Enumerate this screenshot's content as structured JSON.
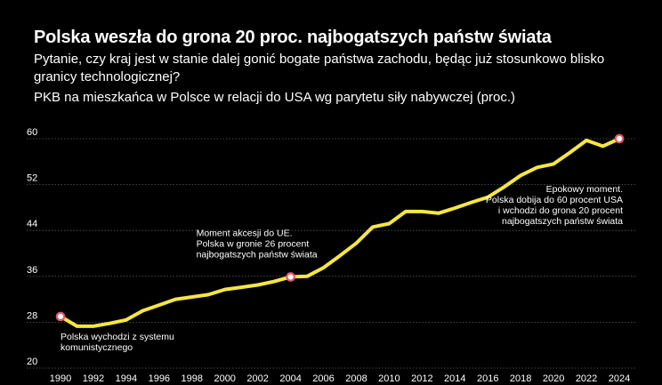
{
  "chart_data": {
    "type": "line",
    "title": "Polska weszła do grona 20 proc. najbogatszych państw świata",
    "subtitle": "Pytanie, czy kraj jest w stanie dalej gonić bogate państwa zachodu, będąc już stosunkowo blisko granicy technologicznej?",
    "measure": "PKB na mieszkańca w Polsce w relacji do USA wg parytetu siły nabywczej (proc.)",
    "ylim": [
      20,
      60
    ],
    "yticks": [
      20,
      28,
      36,
      44,
      52,
      60
    ],
    "xlim": [
      1990,
      2024
    ],
    "xticks": [
      1990,
      1992,
      1994,
      1996,
      1998,
      2000,
      2002,
      2004,
      2006,
      2008,
      2010,
      2012,
      2014,
      2016,
      2018,
      2020,
      2022,
      2024
    ],
    "grid": true,
    "line_color": "#f5e642",
    "marker_color": "#e8556d",
    "series": [
      {
        "x": [
          1990,
          1991,
          1992,
          1993,
          1994,
          1995,
          1996,
          1997,
          1998,
          1999,
          2000,
          2001,
          2002,
          2003,
          2004,
          2005,
          2006,
          2007,
          2008,
          2009,
          2010,
          2011,
          2012,
          2013,
          2014,
          2015,
          2016,
          2017,
          2018,
          2019,
          2020,
          2021,
          2022,
          2023,
          2024
        ],
        "values": [
          29.0,
          27.3,
          27.3,
          27.8,
          28.4,
          30.0,
          31.0,
          32.0,
          32.4,
          32.8,
          33.7,
          34.1,
          34.5,
          35.1,
          35.9,
          36.0,
          37.5,
          39.6,
          41.8,
          44.6,
          45.2,
          47.3,
          47.3,
          47.0,
          47.9,
          48.9,
          49.8,
          51.6,
          53.6,
          55.0,
          55.6,
          57.6,
          59.7,
          58.7,
          60.0
        ]
      }
    ],
    "markers": [
      {
        "x": 1990,
        "y": 29.0
      },
      {
        "x": 2004,
        "y": 35.9
      },
      {
        "x": 2024,
        "y": 60.0
      }
    ],
    "annotations": [
      {
        "x": 1990,
        "y": 29.0,
        "lines": [
          "Polska wychodzi z systemu",
          "komunistycznego"
        ]
      },
      {
        "x": 2004,
        "y": 35.9,
        "lines": [
          "Moment akcesji do UE.",
          "Polska w gronie 26 procent",
          "najbogatszych państw świata"
        ]
      },
      {
        "x": 2024,
        "y": 60.0,
        "lines": [
          "Epokowy moment.",
          "Polska dobija do 60 procent USA",
          "i wchodzi do grona 20 procent",
          "najbogatszych państw świata"
        ]
      }
    ]
  }
}
